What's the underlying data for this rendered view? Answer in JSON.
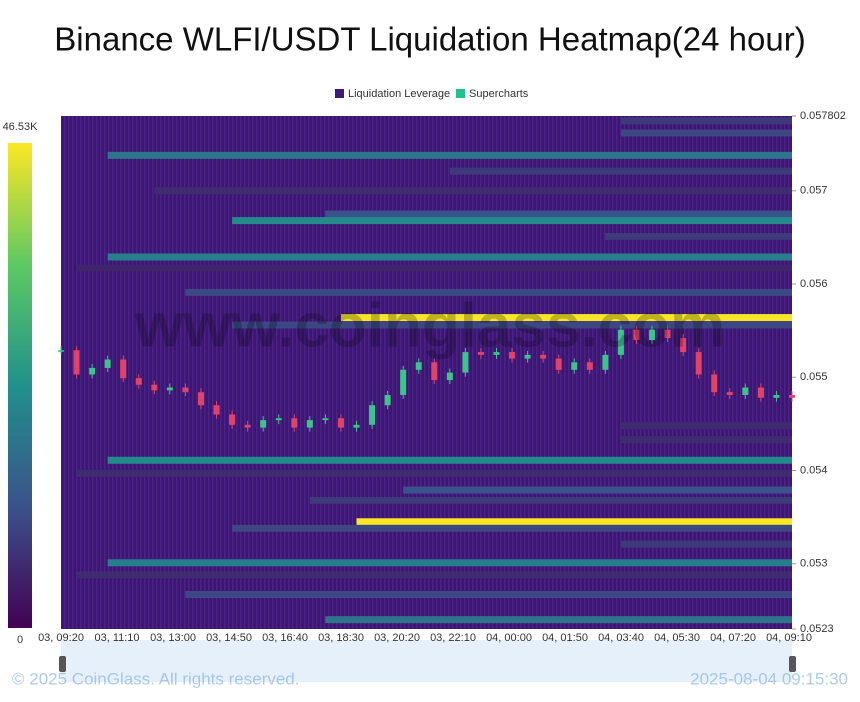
{
  "chart_data": {
    "type": "heatmap",
    "title": "Binance WLFI/USDT Liquidation Heatmap(24 hour)",
    "legend": [
      "Liquidation Leverage",
      "Supercharts"
    ],
    "legend_colors": [
      "#3d1a78",
      "#21c08b"
    ],
    "watermark": "www.coinglass.com",
    "footer": [
      "© 2025 CoinGlass. All rights reserved.",
      "2025-08-04 09:15:30"
    ],
    "colorscale": [
      "#440154",
      "#3b528b",
      "#21918c",
      "#5ec962",
      "#fde725"
    ],
    "colorlim": [
      0,
      46.53
    ],
    "colorticks": [
      {
        "value": 46.53,
        "label": "46.53K"
      },
      0
    ],
    "ylim": [
      0.0523,
      0.057802
    ],
    "yticks": [
      0.057802,
      0.057,
      0.056,
      0.055,
      0.054,
      0.053,
      0.0523
    ],
    "categories": [
      "03, 09:20",
      "03, 11:10",
      "03, 13:00",
      "03, 14:50",
      "03, 16:40",
      "03, 18:30",
      "03, 20:20",
      "03, 22:10",
      "04, 00:00",
      "04, 01:50",
      "04, 03:40",
      "04, 05:30",
      "04, 07:20",
      "04, 09:10"
    ],
    "price": {
      "up_color": "#3cc48a",
      "down_color": "#e0436a",
      "values": [
        0.05529,
        0.05503,
        0.0551,
        0.05519,
        0.05499,
        0.05492,
        0.05486,
        0.05489,
        0.05484,
        0.0547,
        0.0546,
        0.05449,
        0.05446,
        0.05454,
        0.05456,
        0.05446,
        0.05454,
        0.05456,
        0.05446,
        0.05449,
        0.0547,
        0.05481,
        0.05508,
        0.05516,
        0.05497,
        0.05505,
        0.05527,
        0.05524,
        0.05527,
        0.0552,
        0.05524,
        0.0552,
        0.05508,
        0.05516,
        0.05508,
        0.05524,
        0.05551,
        0.0554,
        0.05551,
        0.05542,
        0.05527,
        0.05503,
        0.05484,
        0.05481,
        0.05489,
        0.05478,
        0.05481,
        0.05478
      ]
    },
    "bands": [
      {
        "price": 0.05775,
        "start": 36,
        "value": 8
      },
      {
        "price": 0.05762,
        "start": 36,
        "value": 10
      },
      {
        "price": 0.05738,
        "start": 3,
        "value": 18
      },
      {
        "price": 0.05721,
        "start": 25,
        "value": 8
      },
      {
        "price": 0.057,
        "start": 6,
        "value": 6
      },
      {
        "price": 0.05675,
        "start": 17,
        "value": 12
      },
      {
        "price": 0.05668,
        "start": 11,
        "value": 22
      },
      {
        "price": 0.05651,
        "start": 35,
        "value": 8
      },
      {
        "price": 0.05629,
        "start": 3,
        "value": 20
      },
      {
        "price": 0.05617,
        "start": 1,
        "value": 5
      },
      {
        "price": 0.05591,
        "start": 8,
        "value": 10
      },
      {
        "price": 0.05564,
        "start": 18,
        "value": 46
      },
      {
        "price": 0.05556,
        "start": 11,
        "value": 10
      },
      {
        "price": 0.05448,
        "start": 36,
        "value": 6
      },
      {
        "price": 0.05433,
        "start": 36,
        "value": 6
      },
      {
        "price": 0.05411,
        "start": 3,
        "value": 22
      },
      {
        "price": 0.05397,
        "start": 1,
        "value": 6
      },
      {
        "price": 0.05379,
        "start": 22,
        "value": 12
      },
      {
        "price": 0.05368,
        "start": 16,
        "value": 8
      },
      {
        "price": 0.05345,
        "start": 19,
        "value": 46.53
      },
      {
        "price": 0.05338,
        "start": 11,
        "value": 10
      },
      {
        "price": 0.05321,
        "start": 36,
        "value": 8
      },
      {
        "price": 0.05301,
        "start": 3,
        "value": 20
      },
      {
        "price": 0.05288,
        "start": 1,
        "value": 6
      },
      {
        "price": 0.05267,
        "start": 8,
        "value": 10
      },
      {
        "price": 0.0524,
        "start": 17,
        "value": 18
      }
    ]
  }
}
